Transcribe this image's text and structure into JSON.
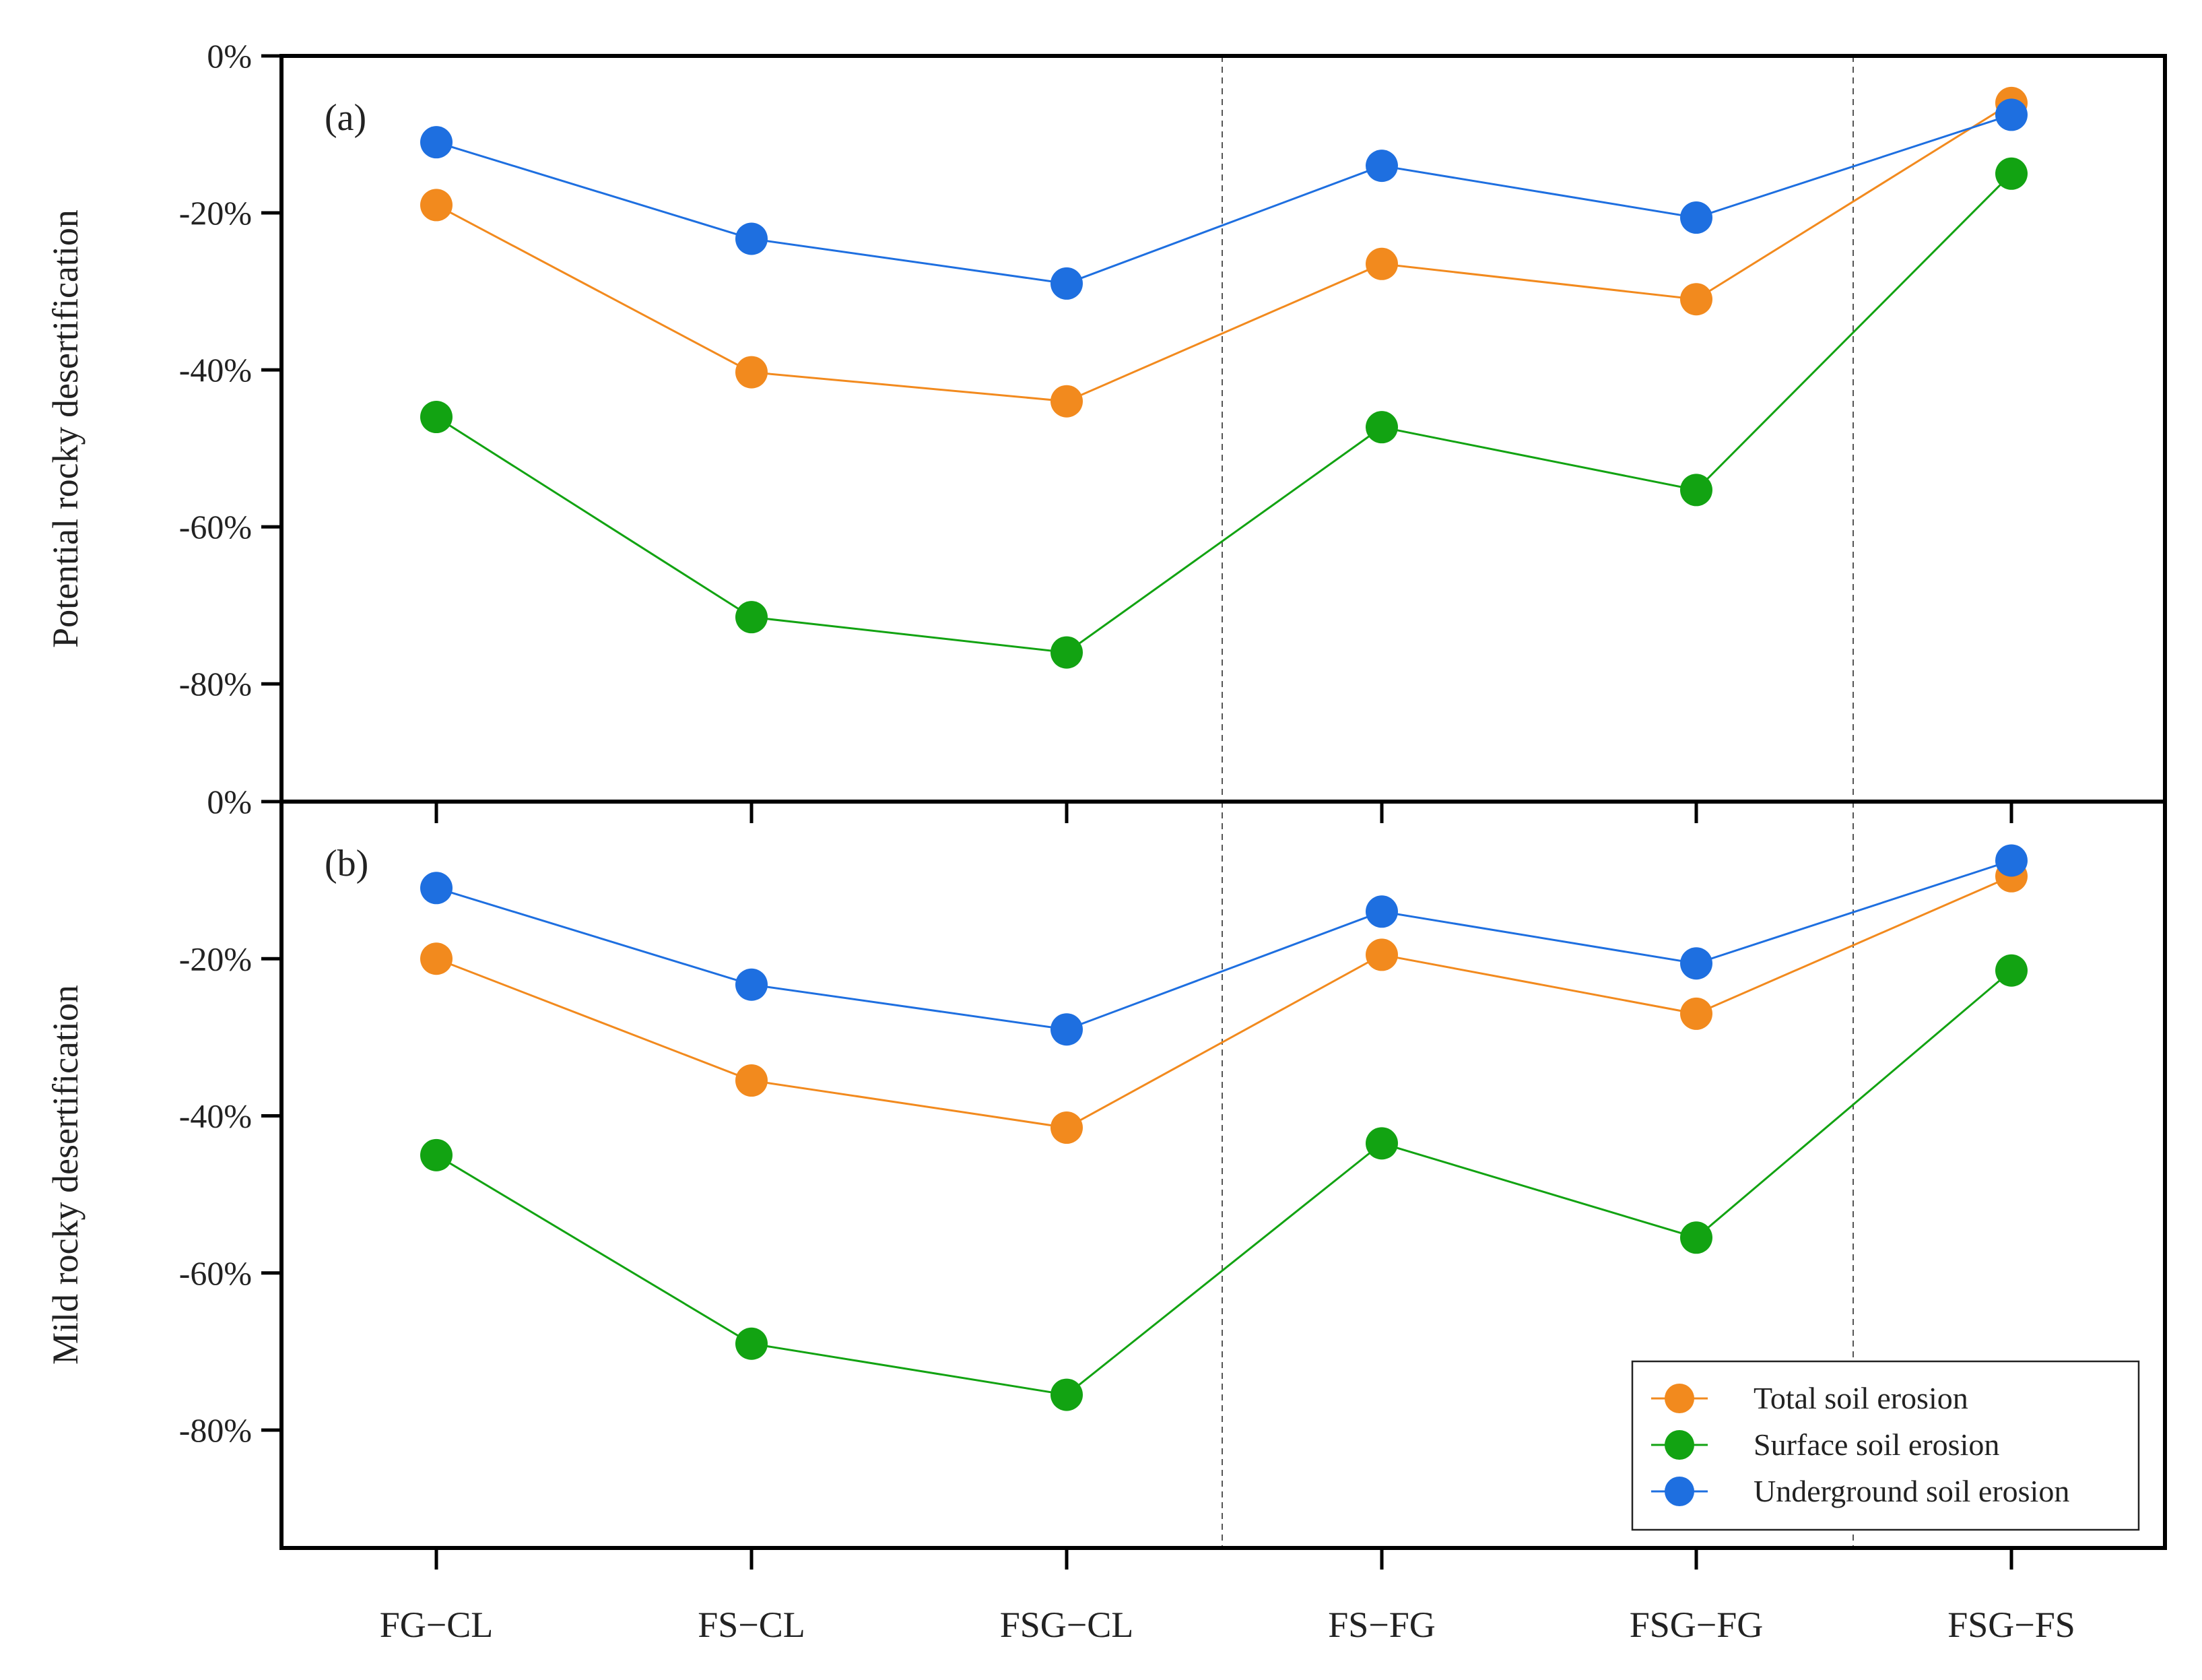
{
  "colors": {
    "total": "#F28A1E",
    "surface": "#12A312",
    "underground": "#1E6FE0",
    "axis": "#000000",
    "divider": "#555555"
  },
  "chart_data": {
    "type": "line",
    "categories": [
      "FG−CL",
      "FS−CL",
      "FSG−CL",
      "FS−FG",
      "FSG−FG",
      "FSG−FS"
    ],
    "legend": {
      "position": "bottom-right",
      "entries": [
        "Total soil erosion",
        "Surface soil erosion",
        "Underground soil erosion"
      ]
    },
    "panels": [
      {
        "label": "(a)",
        "ylabel": "Potential rocky desertification",
        "ylim": [
          -95,
          0
        ],
        "ytick_values": [
          0,
          -20,
          -40,
          -60,
          -80
        ],
        "ytick_labels": [
          "0%",
          "-20%",
          "-40%",
          "-60%",
          "-80%"
        ],
        "series": [
          {
            "key": "total",
            "name": "Total soil erosion",
            "values": [
              -19,
              -40.3,
              -44,
              -26.5,
              -31,
              -6
            ]
          },
          {
            "key": "surface",
            "name": "Surface soil erosion",
            "values": [
              -46,
              -71.5,
              -76,
              -47.3,
              -55.3,
              -15
            ]
          },
          {
            "key": "underground",
            "name": "Underground soil erosion",
            "values": [
              -11,
              -23.3,
              -29,
              -14,
              -20.6,
              -7.5
            ]
          }
        ]
      },
      {
        "label": "(b)",
        "ylabel": "Mild rocky desertification",
        "ylim": [
          -95,
          0
        ],
        "ytick_values": [
          0,
          -20,
          -40,
          -60,
          -80
        ],
        "ytick_labels": [
          "0%",
          "-20%",
          "-40%",
          "-60%",
          "-80%"
        ],
        "series": [
          {
            "key": "total",
            "name": "Total soil erosion",
            "values": [
              -20,
              -35.5,
              -41.5,
              -19.5,
              -27,
              -9.5
            ]
          },
          {
            "key": "surface",
            "name": "Surface soil erosion",
            "values": [
              -45,
              -69,
              -75.5,
              -43.5,
              -55.5,
              -21.5
            ]
          },
          {
            "key": "underground",
            "name": "Underground soil erosion",
            "values": [
              -11,
              -23.3,
              -29,
              -14,
              -20.6,
              -7.5
            ]
          }
        ]
      }
    ]
  }
}
